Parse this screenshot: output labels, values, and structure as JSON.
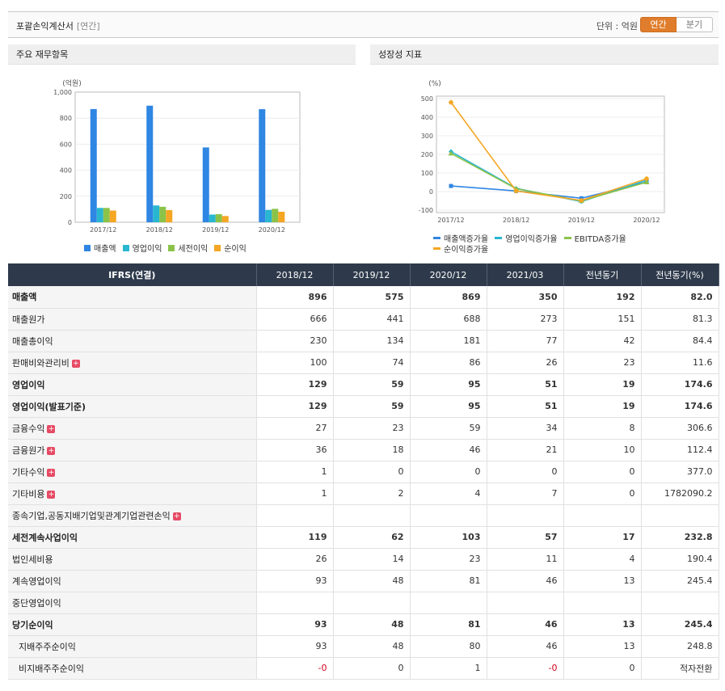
{
  "header": {
    "title": "포괄손익계산서",
    "subtitle": "[연간]",
    "unit_label": "단위 : 억원",
    "period_buttons": [
      "연간",
      "분기"
    ]
  },
  "left_panel": {
    "title": "주요 재무항목"
  },
  "right_panel": {
    "title": "성장성 지표"
  },
  "colors": {
    "sales": "#2f86e3",
    "op": "#29b6d0",
    "pretax": "#8bc34a",
    "net": "#f5a623",
    "accent": "#e07d2c",
    "header_bg": "#2e3a4b",
    "negative": "#d0021b"
  },
  "chart_data": [
    {
      "type": "bar",
      "unit_label": "(억원)",
      "categories": [
        "2017/12",
        "2018/12",
        "2019/12",
        "2020/12"
      ],
      "series": [
        {
          "name": "매출액",
          "values": [
            870,
            896,
            575,
            869
          ]
        },
        {
          "name": "영업이익",
          "values": [
            110,
            129,
            59,
            95
          ]
        },
        {
          "name": "세전이익",
          "values": [
            110,
            119,
            62,
            103
          ]
        },
        {
          "name": "순이익",
          "values": [
            90,
            93,
            48,
            81
          ]
        }
      ],
      "ylim": [
        0,
        1000
      ],
      "yticks": [
        "0",
        "200",
        "400",
        "600",
        "800",
        "1,000"
      ],
      "legend": "bottom"
    },
    {
      "type": "line",
      "unit_label": "(%)",
      "categories": [
        "2017/12",
        "2018/12",
        "2019/12",
        "2020/12"
      ],
      "series": [
        {
          "name": "매출액증가율",
          "values": [
            30,
            3,
            -36,
            51
          ]
        },
        {
          "name": "영업이익증가율",
          "values": [
            215,
            17,
            -54,
            61
          ]
        },
        {
          "name": "EBITDA증가율",
          "values": [
            205,
            15,
            -50,
            50
          ]
        },
        {
          "name": "순이익증가율",
          "values": [
            480,
            3,
            -48,
            69
          ]
        }
      ],
      "ylim": [
        -100,
        500
      ],
      "yticks": [
        "-100",
        "0",
        "100",
        "200",
        "300",
        "400",
        "500"
      ],
      "legend": "bottom"
    }
  ],
  "table": {
    "headers": [
      "IFRS(연결)",
      "2018/12",
      "2019/12",
      "2020/12",
      "2021/03",
      "전년동기",
      "전년동기(%)"
    ],
    "rows": [
      {
        "label": "매출액",
        "values": [
          "896",
          "575",
          "869",
          "350",
          "192",
          "82.0"
        ],
        "bold": true
      },
      {
        "label": "매출원가",
        "values": [
          "666",
          "441",
          "688",
          "273",
          "151",
          "81.3"
        ]
      },
      {
        "label": "매출총이익",
        "values": [
          "230",
          "134",
          "181",
          "77",
          "42",
          "84.4"
        ]
      },
      {
        "label": "판매비와관리비",
        "values": [
          "100",
          "74",
          "86",
          "26",
          "23",
          "11.6"
        ],
        "expand": true
      },
      {
        "label": "영업이익",
        "values": [
          "129",
          "59",
          "95",
          "51",
          "19",
          "174.6"
        ],
        "bold": true
      },
      {
        "label": "영업이익(발표기준)",
        "values": [
          "129",
          "59",
          "95",
          "51",
          "19",
          "174.6"
        ],
        "bold": true
      },
      {
        "label": "금융수익",
        "values": [
          "27",
          "23",
          "59",
          "34",
          "8",
          "306.6"
        ],
        "expand": true
      },
      {
        "label": "금융원가",
        "values": [
          "36",
          "18",
          "46",
          "21",
          "10",
          "112.4"
        ],
        "expand": true
      },
      {
        "label": "기타수익",
        "values": [
          "1",
          "0",
          "0",
          "0",
          "0",
          "377.0"
        ],
        "expand": true
      },
      {
        "label": "기타비용",
        "values": [
          "1",
          "2",
          "4",
          "7",
          "0",
          "1782090.2"
        ],
        "expand": true
      },
      {
        "label": "종속기업,공동지배기업및관계기업관련손익",
        "values": [
          "",
          "",
          "",
          "",
          "",
          ""
        ],
        "expand": true
      },
      {
        "label": "세전계속사업이익",
        "values": [
          "119",
          "62",
          "103",
          "57",
          "17",
          "232.8"
        ],
        "bold": true
      },
      {
        "label": "법인세비용",
        "values": [
          "26",
          "14",
          "23",
          "11",
          "4",
          "190.4"
        ]
      },
      {
        "label": "계속영업이익",
        "values": [
          "93",
          "48",
          "81",
          "46",
          "13",
          "245.4"
        ]
      },
      {
        "label": "중단영업이익",
        "values": [
          "",
          "",
          "",
          "",
          "",
          ""
        ]
      },
      {
        "label": "당기순이익",
        "values": [
          "93",
          "48",
          "81",
          "46",
          "13",
          "245.4"
        ],
        "bold": true
      },
      {
        "label": "지배주주순이익",
        "values": [
          "93",
          "48",
          "80",
          "46",
          "13",
          "248.8"
        ],
        "indent": true
      },
      {
        "label": "비지배주주순이익",
        "values": [
          "-0",
          "0",
          "1",
          "-0",
          "0",
          "적자전환"
        ],
        "indent": true
      }
    ]
  }
}
